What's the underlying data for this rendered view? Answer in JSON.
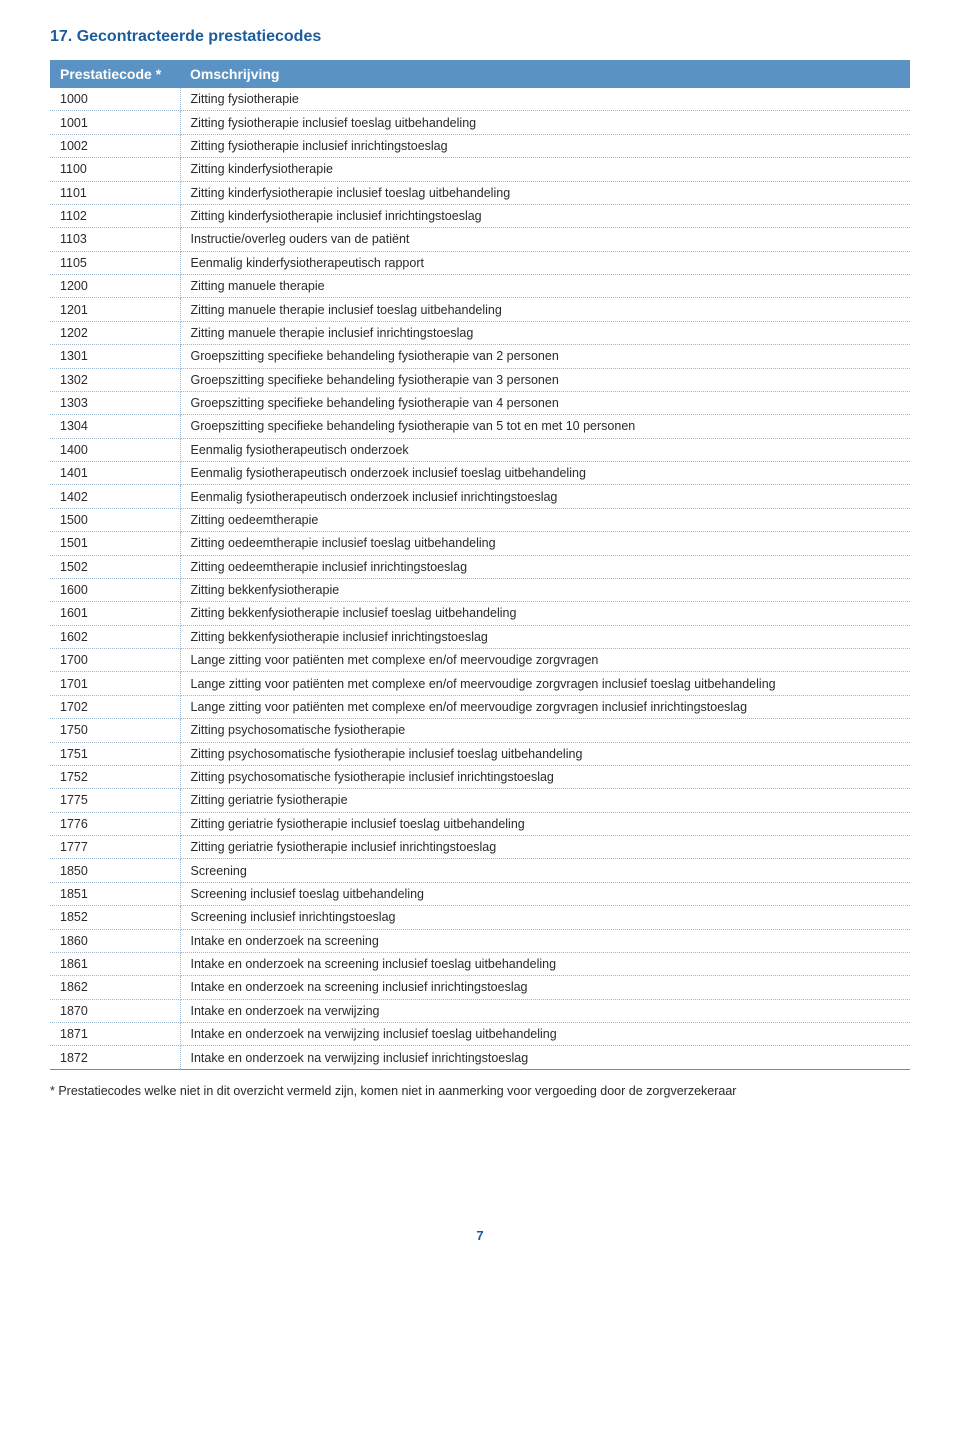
{
  "section_title": "17. Gecontracteerde prestatiecodes",
  "table": {
    "columns": [
      "Prestatiecode *",
      "Omschrijving"
    ],
    "rows": [
      [
        "1000",
        "Zitting fysiotherapie"
      ],
      [
        "1001",
        "Zitting fysiotherapie inclusief toeslag uitbehandeling"
      ],
      [
        "1002",
        "Zitting fysiotherapie inclusief inrichtingstoeslag"
      ],
      [
        "1100",
        "Zitting kinderfysiotherapie"
      ],
      [
        "1101",
        "Zitting kinderfysiotherapie inclusief toeslag uitbehandeling"
      ],
      [
        "1102",
        "Zitting kinderfysiotherapie inclusief inrichtingstoeslag"
      ],
      [
        "1103",
        "Instructie/overleg ouders van de patiënt"
      ],
      [
        "1105",
        "Eenmalig kinderfysiotherapeutisch rapport"
      ],
      [
        "1200",
        "Zitting manuele therapie"
      ],
      [
        "1201",
        "Zitting manuele therapie inclusief toeslag uitbehandeling"
      ],
      [
        "1202",
        "Zitting manuele therapie inclusief inrichtingstoeslag"
      ],
      [
        "1301",
        "Groepszitting specifieke behandeling fysiotherapie van 2 personen"
      ],
      [
        "1302",
        "Groepszitting specifieke behandeling fysiotherapie van 3 personen"
      ],
      [
        "1303",
        "Groepszitting specifieke behandeling fysiotherapie van 4 personen"
      ],
      [
        "1304",
        "Groepszitting specifieke behandeling fysiotherapie van 5 tot en met 10 personen"
      ],
      [
        "1400",
        "Eenmalig fysiotherapeutisch onderzoek"
      ],
      [
        "1401",
        "Eenmalig fysiotherapeutisch onderzoek inclusief toeslag uitbehandeling"
      ],
      [
        "1402",
        "Eenmalig fysiotherapeutisch onderzoek inclusief inrichtingstoeslag"
      ],
      [
        "1500",
        "Zitting oedeemtherapie"
      ],
      [
        "1501",
        "Zitting oedeemtherapie inclusief toeslag uitbehandeling"
      ],
      [
        "1502",
        "Zitting oedeemtherapie inclusief inrichtingstoeslag"
      ],
      [
        "1600",
        "Zitting bekkenfysiotherapie"
      ],
      [
        "1601",
        "Zitting bekkenfysiotherapie inclusief toeslag uitbehandeling"
      ],
      [
        "1602",
        "Zitting bekkenfysiotherapie inclusief inrichtingstoeslag"
      ],
      [
        "1700",
        "Lange zitting voor patiënten met complexe en/of meervoudige zorgvragen"
      ],
      [
        "1701",
        "Lange zitting voor patiënten met complexe en/of meervoudige zorgvragen inclusief toeslag uitbehandeling"
      ],
      [
        "1702",
        "Lange zitting voor patiënten met complexe en/of meervoudige zorgvragen inclusief inrichtingstoeslag"
      ],
      [
        "1750",
        "Zitting psychosomatische fysiotherapie"
      ],
      [
        "1751",
        "Zitting psychosomatische fysiotherapie inclusief toeslag uitbehandeling"
      ],
      [
        "1752",
        "Zitting psychosomatische fysiotherapie inclusief inrichtingstoeslag"
      ],
      [
        "1775",
        "Zitting geriatrie fysiotherapie"
      ],
      [
        "1776",
        "Zitting geriatrie fysiotherapie inclusief toeslag uitbehandeling"
      ],
      [
        "1777",
        "Zitting geriatrie fysiotherapie inclusief inrichtingstoeslag"
      ],
      [
        "1850",
        "Screening"
      ],
      [
        "1851",
        "Screening inclusief toeslag uitbehandeling"
      ],
      [
        "1852",
        "Screening inclusief inrichtingstoeslag"
      ],
      [
        "1860",
        "Intake en onderzoek na screening"
      ],
      [
        "1861",
        "Intake en onderzoek na screening inclusief toeslag uitbehandeling"
      ],
      [
        "1862",
        "Intake en onderzoek na screening inclusief inrichtingstoeslag"
      ],
      [
        "1870",
        "Intake en onderzoek na verwijzing"
      ],
      [
        "1871",
        "Intake en onderzoek na verwijzing inclusief toeslag uitbehandeling"
      ],
      [
        "1872",
        "Intake en onderzoek na verwijzing inclusief inrichtingstoeslag"
      ]
    ]
  },
  "footnote": "* Prestatiecodes welke niet in dit overzicht vermeld zijn, komen niet in aanmerking voor vergoeding door de zorgverzekeraar",
  "page_number": "7",
  "colors": {
    "heading": "#1b5c9b",
    "header_bg": "#5a93c3",
    "header_text": "#ffffff",
    "border_dotted": "#9ab6cf",
    "body_text": "#2a2a2a"
  }
}
